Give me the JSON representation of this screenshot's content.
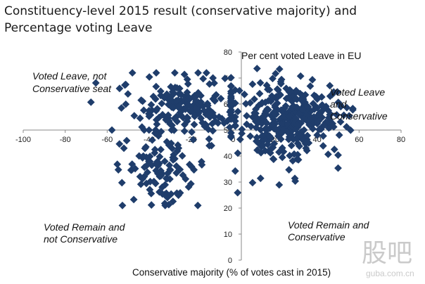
{
  "chart_data": {
    "type": "scatter",
    "title": "Constituency-level 2015 result (conservative majority) and Percentage voting Leave",
    "xlabel": "Conservative majority (% of votes cast in 2015)",
    "ylabel": "Per cent voted Leave in EU",
    "xlim": [
      -100,
      80
    ],
    "ylim": [
      0,
      80
    ],
    "x_ticks": [
      "-100",
      "-80",
      "-60",
      "-40",
      "-20",
      "0",
      "20",
      "40",
      "60",
      "80"
    ],
    "y_ticks": [
      "0",
      "10",
      "20",
      "30",
      "40",
      "50",
      "60",
      "70",
      "80"
    ],
    "x_axis_crosses_y_at": 50,
    "marker": "diamond",
    "marker_color": "#1f3d6b",
    "quadrant_labels": {
      "top_left": [
        "Voted Leave, not",
        "Conservative seat"
      ],
      "top_right": [
        "Voted Leave",
        "and",
        "Conservative"
      ],
      "bottom_left": [
        "Voted Remain and",
        "not Conservative"
      ],
      "bottom_right": [
        "Voted Remain and",
        "Conservative"
      ]
    },
    "points_note": "approximately 630 constituencies; values estimated from plotted cloud"
  },
  "watermark": {
    "logo_text": "股吧",
    "url_text": "guba.com.cn"
  }
}
